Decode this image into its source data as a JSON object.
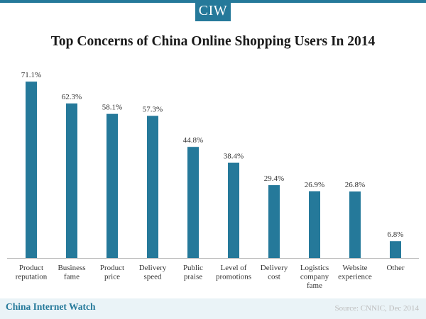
{
  "header": {
    "logo_text": "CIW"
  },
  "footer": {
    "brand": "China Internet Watch",
    "source": "Source: CNNIC, Dec 2014"
  },
  "colors": {
    "accent": "#25799a",
    "bar": "#25799a",
    "footer_bg": "#eaf3f7"
  },
  "chart_data": {
    "type": "bar",
    "title": "Top Concerns of China Online Shopping Users In 2014",
    "xlabel": "",
    "ylabel": "",
    "ylim": [
      0,
      75
    ],
    "grid": false,
    "categories": [
      [
        "Product",
        "reputation"
      ],
      [
        "Business",
        "fame"
      ],
      [
        "Product",
        "price"
      ],
      [
        "Delivery",
        "speed"
      ],
      [
        "Public",
        "praise"
      ],
      [
        "Level of",
        "promotions"
      ],
      [
        "Delivery",
        "cost"
      ],
      [
        "Logistics",
        "company",
        "fame"
      ],
      [
        "Website",
        "experience"
      ],
      [
        "Other"
      ]
    ],
    "values": [
      71.1,
      62.3,
      58.1,
      57.3,
      44.8,
      38.4,
      29.4,
      26.9,
      26.8,
      6.8
    ],
    "value_labels": [
      "71.1%",
      "62.3%",
      "58.1%",
      "57.3%",
      "44.8%",
      "38.4%",
      "29.4%",
      "26.9%",
      "26.8%",
      "6.8%"
    ]
  }
}
